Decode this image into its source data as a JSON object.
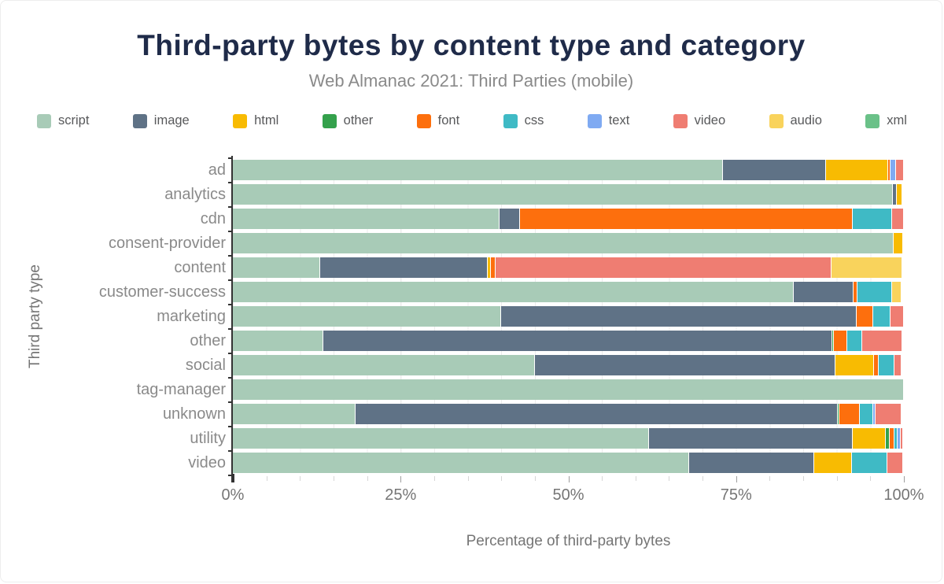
{
  "chart_data": {
    "type": "bar",
    "orientation": "horizontal-stacked",
    "title": "Third-party bytes by content type and category",
    "subtitle": "Web Almanac 2021: Third Parties (mobile)",
    "xlabel": "Percentage of third-party bytes",
    "ylabel": "Third party type",
    "xlim": [
      0,
      100
    ],
    "x_tick_labels": [
      "0%",
      "25%",
      "50%",
      "75%",
      "100%"
    ],
    "x_tick_positions": [
      0,
      25,
      50,
      75,
      100
    ],
    "minor_grid_step_percent": 5,
    "grid": true,
    "legend_position": "top",
    "categories": [
      "ad",
      "analytics",
      "cdn",
      "consent-provider",
      "content",
      "customer-success",
      "marketing",
      "other",
      "social",
      "tag-manager",
      "unknown",
      "utility",
      "video"
    ],
    "series": [
      {
        "name": "script",
        "color": "#a8cbb7",
        "values": [
          73.0,
          98.4,
          39.8,
          98.5,
          13.0,
          83.6,
          40.0,
          13.5,
          45.0,
          100.0,
          18.3,
          62.0,
          68.0
        ]
      },
      {
        "name": "image",
        "color": "#5f7286",
        "values": [
          15.4,
          0.6,
          3.0,
          0,
          25.0,
          8.9,
          53.0,
          75.8,
          44.8,
          0,
          71.8,
          30.4,
          18.6
        ]
      },
      {
        "name": "html",
        "color": "#f8bb02",
        "values": [
          9.3,
          0.8,
          0,
          1.4,
          0.4,
          0,
          0,
          0,
          5.7,
          0,
          0,
          4.9,
          5.7
        ]
      },
      {
        "name": "other",
        "color": "#34a14c",
        "values": [
          0,
          0,
          0,
          0,
          0,
          0,
          0,
          0.3,
          0,
          0,
          0.3,
          0.6,
          0
        ]
      },
      {
        "name": "font",
        "color": "#fd6f0d",
        "values": [
          0.3,
          0,
          49.6,
          0,
          0.8,
          0.6,
          2.4,
          2.0,
          0.7,
          0,
          3.0,
          0.7,
          0
        ]
      },
      {
        "name": "css",
        "color": "#3fbac5",
        "values": [
          0,
          0,
          5.8,
          0,
          0,
          5.2,
          2.6,
          2.2,
          2.4,
          0,
          2.0,
          0.5,
          5.2
        ]
      },
      {
        "name": "text",
        "color": "#7faaf2",
        "values": [
          0.8,
          0,
          0,
          0,
          0,
          0,
          0,
          0,
          0,
          0,
          0.4,
          0.4,
          0
        ]
      },
      {
        "name": "video",
        "color": "#ef7d72",
        "values": [
          1.2,
          0,
          1.8,
          0,
          50.0,
          0,
          2.0,
          6.0,
          1.1,
          0,
          3.9,
          0.4,
          2.4
        ]
      },
      {
        "name": "audio",
        "color": "#f9d35c",
        "values": [
          0,
          0,
          0,
          0,
          10.6,
          1.4,
          0,
          0,
          0,
          0,
          0,
          0,
          0
        ]
      },
      {
        "name": "xml",
        "color": "#6ac188",
        "values": [
          0,
          0,
          0,
          0,
          0,
          0,
          0,
          0,
          0,
          0,
          0,
          0,
          0
        ]
      }
    ]
  },
  "theme": {
    "title_color": "#1f2b49",
    "subtitle_color": "#8a8a8a",
    "axis_text_color": "#757575",
    "label_color": "#8a8a8a",
    "legend_text_color": "#58595b",
    "axis_line_color": "#333333",
    "grid_color": "#ececec"
  }
}
